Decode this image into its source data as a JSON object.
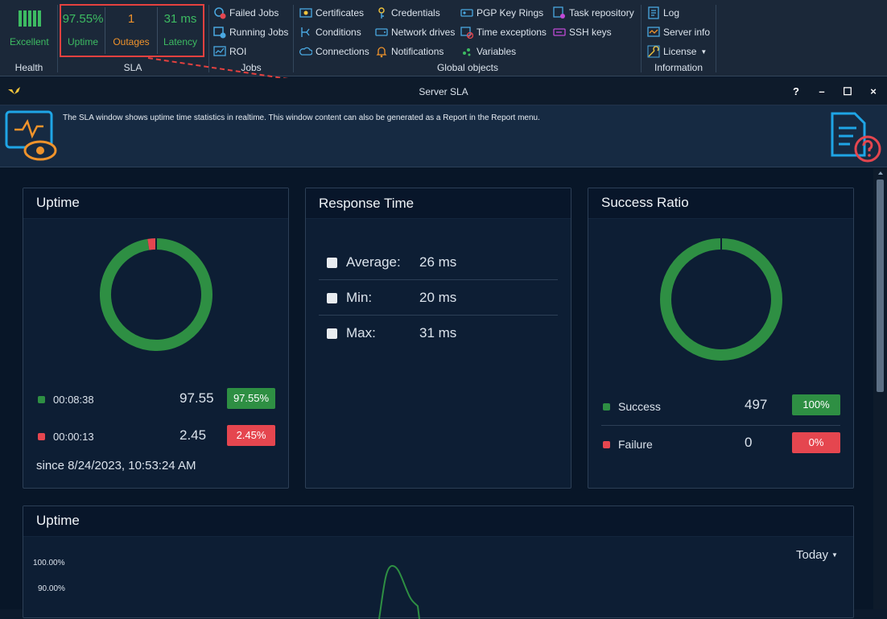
{
  "ribbon": {
    "health": {
      "status": "Excellent",
      "group_label": "Health"
    },
    "sla": {
      "uptime_value": "97.55%",
      "uptime_label": "Uptime",
      "outages_value": "1",
      "outages_label": "Outages",
      "latency_value": "31 ms",
      "latency_label": "Latency",
      "group_label": "SLA"
    },
    "jobs": {
      "items": [
        "Failed Jobs",
        "Running Jobs",
        "ROI"
      ],
      "group_label": "Jobs"
    },
    "global_objects": {
      "col1": [
        "Certificates",
        "Conditions",
        "Connections"
      ],
      "col2": [
        "Credentials",
        "Network drives",
        "Notifications"
      ],
      "col3": [
        "PGP Key Rings",
        "Time exceptions",
        "Variables"
      ],
      "col4": [
        "Task repository",
        "SSH keys"
      ],
      "group_label": "Global objects"
    },
    "information": {
      "items": [
        "Log",
        "Server info",
        "License"
      ],
      "group_label": "Information"
    }
  },
  "window": {
    "title": "Server SLA",
    "help": "?",
    "minimize": "–",
    "maximize": "☐",
    "close": "×",
    "info_text": "The SLA window shows uptime time statistics in realtime. This window content can also be generated as a Report in the Report menu."
  },
  "uptime_card": {
    "title": "Uptime",
    "up": {
      "time": "00:08:38",
      "value": "97.55",
      "badge": "97.55%"
    },
    "down": {
      "time": "00:00:13",
      "value": "2.45",
      "badge": "2.45%"
    },
    "since": "since 8/24/2023, 10:53:24 AM"
  },
  "response_card": {
    "title": "Response Time",
    "rows": [
      {
        "label": "Average:",
        "value": "26 ms"
      },
      {
        "label": "Min:",
        "value": "20 ms"
      },
      {
        "label": "Max:",
        "value": "31 ms"
      }
    ]
  },
  "success_card": {
    "title": "Success Ratio",
    "success": {
      "label": "Success",
      "value": "497",
      "badge": "100%"
    },
    "failure": {
      "label": "Failure",
      "value": "0",
      "badge": "0%"
    }
  },
  "uptime_chart": {
    "title": "Uptime",
    "range": "Today",
    "ticks": [
      "100.00%",
      "90.00%"
    ]
  },
  "colors": {
    "green": "#2e8f43",
    "red": "#e5464f",
    "orange": "#f0932b",
    "accent_blue": "#1fa5e6"
  },
  "chart_data": {
    "type": "pie",
    "charts": [
      {
        "title": "Uptime",
        "slices": [
          {
            "label": "00:08:38",
            "value": 97.55
          },
          {
            "label": "00:00:13",
            "value": 2.45
          }
        ]
      },
      {
        "title": "Success Ratio",
        "slices": [
          {
            "label": "Success",
            "value": 497
          },
          {
            "label": "Failure",
            "value": 0
          }
        ]
      }
    ]
  }
}
